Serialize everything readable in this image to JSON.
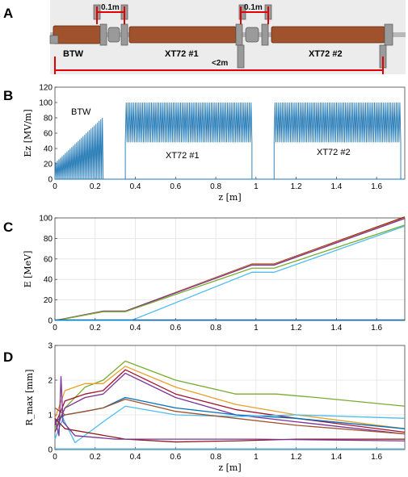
{
  "panels": [
    "A",
    "B",
    "C",
    "D"
  ],
  "schematic": {
    "sections": [
      "BTW",
      "XT72 #1",
      "XT72 #2"
    ],
    "dim_labels": [
      "0.1m",
      "0.1m",
      "<2m"
    ],
    "colors": {
      "copper": "#a0522d",
      "dimension": "#e00000"
    }
  },
  "chart_data": [
    {
      "type": "line",
      "id": "B",
      "xlabel": "z [m]",
      "ylabel": "Ez [MV/m]",
      "xlim": [
        0,
        1.74
      ],
      "ylim": [
        0,
        120
      ],
      "xticks": [
        "0",
        "0.2",
        "0.4",
        "0.6",
        "0.8",
        "1",
        "1.2",
        "1.4",
        "1.6"
      ],
      "yticks": [
        "0",
        "20",
        "40",
        "60",
        "80",
        "100",
        "120"
      ],
      "annotations": [
        "BTW",
        "XT72 #1",
        "XT72 #2"
      ],
      "color": "#1f77b4",
      "segments": [
        {
          "name": "BTW",
          "z_start": 0.0,
          "z_end": 0.24,
          "peak_start": 22,
          "peak_end": 80,
          "trough": 0
        },
        {
          "name": "XT72 #1",
          "z_start": 0.35,
          "z_end": 0.98,
          "peak": 100,
          "trough": 48
        },
        {
          "name": "XT72 #2",
          "z_start": 1.09,
          "z_end": 1.72,
          "peak": 100,
          "trough": 48
        }
      ]
    },
    {
      "type": "line",
      "id": "C",
      "xlabel": "E [MeV]",
      "xaxis_label": "",
      "ylabel": "E [MeV]",
      "xlim": [
        0,
        1.74
      ],
      "ylim": [
        0,
        100
      ],
      "xticks": [
        "0",
        "0.2",
        "0.4",
        "0.6",
        "0.8",
        "1",
        "1.2",
        "1.4",
        "1.6"
      ],
      "yticks": [
        "0",
        "20",
        "40",
        "60",
        "80",
        "100"
      ],
      "grid": true,
      "series": [
        {
          "color": "#8b1a1a",
          "x": [
            0,
            0.03,
            0.24,
            0.35,
            0.98,
            1.09,
            1.74
          ],
          "y": [
            0,
            1,
            9,
            9,
            55,
            55,
            101
          ]
        },
        {
          "color": "#e8a02a",
          "x": [
            0,
            0.03,
            0.24,
            0.35,
            0.98,
            1.09,
            1.74
          ],
          "y": [
            0,
            1,
            9,
            9,
            54.5,
            54.5,
            100
          ]
        },
        {
          "color": "#7b3294",
          "x": [
            0,
            0.03,
            0.24,
            0.35,
            0.98,
            1.09,
            1.74
          ],
          "y": [
            0,
            1,
            9,
            9,
            54,
            54,
            99.5
          ]
        },
        {
          "color": "#77ac30",
          "x": [
            0,
            0.03,
            0.24,
            0.35,
            0.98,
            1.09,
            1.74
          ],
          "y": [
            0,
            0.8,
            8.5,
            8.5,
            51,
            51,
            93
          ]
        },
        {
          "color": "#4dbeee",
          "x": [
            0,
            0.3,
            0.38,
            0.98,
            1.09,
            1.74
          ],
          "y": [
            0,
            0,
            0,
            47,
            47,
            92
          ]
        },
        {
          "color": "#0072bd",
          "x": [
            0,
            1.74
          ],
          "y": [
            0.5,
            0.5
          ]
        }
      ]
    },
    {
      "type": "line",
      "id": "D",
      "xlabel": "z [m]",
      "ylabel": "R_max [mm]",
      "xlim": [
        0,
        1.74
      ],
      "ylim": [
        0,
        3
      ],
      "xticks": [
        "0",
        "0.2",
        "0.4",
        "0.6",
        "0.8",
        "1",
        "1.2",
        "1.4",
        "1.6"
      ],
      "yticks": [
        "0",
        "1",
        "2",
        "3"
      ],
      "grid": true,
      "series": [
        {
          "color": "#77ac30",
          "x": [
            0,
            0.05,
            0.15,
            0.24,
            0.35,
            0.6,
            0.9,
            1.1,
            1.3,
            1.74
          ],
          "y": [
            0.6,
            1.2,
            1.8,
            2.0,
            2.55,
            2.0,
            1.6,
            1.6,
            1.5,
            1.25
          ]
        },
        {
          "color": "#e8a02a",
          "x": [
            0,
            0.05,
            0.15,
            0.24,
            0.35,
            0.6,
            0.9,
            1.2,
            1.74
          ],
          "y": [
            0.9,
            1.7,
            1.9,
            1.9,
            2.4,
            1.8,
            1.3,
            1.0,
            0.6
          ]
        },
        {
          "color": "#a2142f",
          "x": [
            0,
            0.05,
            0.15,
            0.24,
            0.35,
            0.6,
            0.9,
            1.2,
            1.74
          ],
          "y": [
            0.7,
            1.4,
            1.6,
            1.7,
            2.3,
            1.6,
            1.15,
            0.9,
            0.5
          ]
        },
        {
          "color": "#7b3294",
          "x": [
            0,
            0.05,
            0.15,
            0.24,
            0.35,
            0.6,
            0.9,
            1.2,
            1.74
          ],
          "y": [
            0.5,
            1.2,
            1.5,
            1.6,
            2.2,
            1.5,
            1.0,
            0.8,
            0.45
          ]
        },
        {
          "color": "#0072bd",
          "x": [
            0,
            0.05,
            0.15,
            0.24,
            0.35,
            0.6,
            0.9,
            1.2,
            1.74
          ],
          "y": [
            0.8,
            1.0,
            1.1,
            1.2,
            1.5,
            1.2,
            1.0,
            0.9,
            0.6
          ]
        },
        {
          "color": "#4dbeee",
          "x": [
            0,
            0.04,
            0.1,
            0.24,
            0.35,
            0.6,
            0.9,
            1.2,
            1.74
          ],
          "y": [
            0.3,
            0.9,
            0.2,
            0.8,
            1.25,
            1.0,
            0.95,
            1.0,
            0.9
          ]
        },
        {
          "color": "#a0522d",
          "x": [
            0,
            0.05,
            0.15,
            0.24,
            0.35,
            0.6,
            0.9,
            1.2,
            1.74
          ],
          "y": [
            1.2,
            1.0,
            1.1,
            1.2,
            1.45,
            1.1,
            0.9,
            0.7,
            0.45
          ]
        },
        {
          "color": "#8b1a1a",
          "x": [
            0,
            0.05,
            0.2,
            0.35,
            0.6,
            0.9,
            1.2,
            1.74
          ],
          "y": [
            0.9,
            0.6,
            0.45,
            0.3,
            0.22,
            0.25,
            0.3,
            0.3
          ]
        },
        {
          "color": "#7b3294",
          "x": [
            0,
            0.02,
            0.03,
            0.04,
            0.1,
            0.3,
            0.6,
            1.0,
            1.74
          ],
          "y": [
            0.9,
            0.4,
            2.1,
            0.8,
            0.4,
            0.3,
            0.3,
            0.3,
            0.25
          ]
        },
        {
          "color": "#4dbeee",
          "x": [
            0,
            1.74
          ],
          "y": [
            0.02,
            0.02
          ]
        }
      ]
    }
  ]
}
